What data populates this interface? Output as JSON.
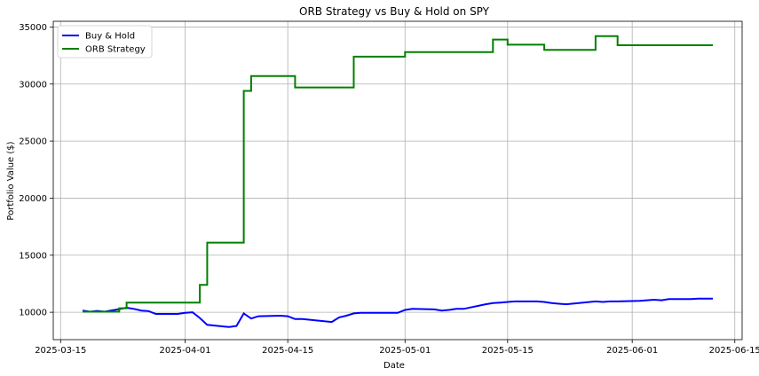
{
  "chart_data": {
    "type": "line",
    "title": "ORB Strategy vs Buy & Hold on SPY",
    "xlabel": "Date",
    "ylabel": "Portfolio Value ($)",
    "x_ticks": [
      "2025-03-15",
      "2025-04-01",
      "2025-04-15",
      "2025-05-01",
      "2025-05-15",
      "2025-06-01",
      "2025-06-15"
    ],
    "y_ticks": [
      10000,
      15000,
      20000,
      25000,
      30000,
      35000
    ],
    "xlim": [
      "2025-03-14",
      "2025-06-16"
    ],
    "ylim": [
      7600,
      35500
    ],
    "grid": true,
    "legend": "top-left",
    "series": [
      {
        "name": "Buy & Hold",
        "color": "#0000ff",
        "points": [
          [
            "2025-03-18",
            10150
          ],
          [
            "2025-03-19",
            10050
          ],
          [
            "2025-03-20",
            10120
          ],
          [
            "2025-03-21",
            10050
          ],
          [
            "2025-03-24",
            10400
          ],
          [
            "2025-03-25",
            10300
          ],
          [
            "2025-03-26",
            10150
          ],
          [
            "2025-03-27",
            10100
          ],
          [
            "2025-03-28",
            9850
          ],
          [
            "2025-03-31",
            9850
          ],
          [
            "2025-04-01",
            9950
          ],
          [
            "2025-04-02",
            10000
          ],
          [
            "2025-04-03",
            9500
          ],
          [
            "2025-04-04",
            8900
          ],
          [
            "2025-04-07",
            8700
          ],
          [
            "2025-04-08",
            8800
          ],
          [
            "2025-04-09",
            9900
          ],
          [
            "2025-04-10",
            9450
          ],
          [
            "2025-04-11",
            9650
          ],
          [
            "2025-04-14",
            9700
          ],
          [
            "2025-04-15",
            9650
          ],
          [
            "2025-04-16",
            9400
          ],
          [
            "2025-04-17",
            9400
          ],
          [
            "2025-04-21",
            9150
          ],
          [
            "2025-04-22",
            9550
          ],
          [
            "2025-04-23",
            9700
          ],
          [
            "2025-04-24",
            9900
          ],
          [
            "2025-04-25",
            9950
          ],
          [
            "2025-04-28",
            9950
          ],
          [
            "2025-04-29",
            9950
          ],
          [
            "2025-04-30",
            9950
          ],
          [
            "2025-05-01",
            10200
          ],
          [
            "2025-05-02",
            10300
          ],
          [
            "2025-05-05",
            10250
          ],
          [
            "2025-05-06",
            10150
          ],
          [
            "2025-05-07",
            10200
          ],
          [
            "2025-05-08",
            10300
          ],
          [
            "2025-05-09",
            10300
          ],
          [
            "2025-05-12",
            10700
          ],
          [
            "2025-05-13",
            10800
          ],
          [
            "2025-05-14",
            10850
          ],
          [
            "2025-05-15",
            10900
          ],
          [
            "2025-05-16",
            10950
          ],
          [
            "2025-05-19",
            10950
          ],
          [
            "2025-05-20",
            10900
          ],
          [
            "2025-05-21",
            10800
          ],
          [
            "2025-05-22",
            10750
          ],
          [
            "2025-05-23",
            10700
          ],
          [
            "2025-05-27",
            10950
          ],
          [
            "2025-05-28",
            10900
          ],
          [
            "2025-05-29",
            10950
          ],
          [
            "2025-05-30",
            10950
          ],
          [
            "2025-06-02",
            11000
          ],
          [
            "2025-06-03",
            11050
          ],
          [
            "2025-06-04",
            11100
          ],
          [
            "2025-06-05",
            11050
          ],
          [
            "2025-06-06",
            11150
          ],
          [
            "2025-06-09",
            11150
          ],
          [
            "2025-06-10",
            11200
          ],
          [
            "2025-06-11",
            11200
          ],
          [
            "2025-06-12",
            11200
          ]
        ]
      },
      {
        "name": "ORB Strategy",
        "color": "#008000",
        "step": true,
        "points": [
          [
            "2025-03-18",
            10050
          ],
          [
            "2025-03-23",
            10350
          ],
          [
            "2025-03-24",
            10850
          ],
          [
            "2025-04-03",
            12400
          ],
          [
            "2025-04-04",
            16100
          ],
          [
            "2025-04-09",
            29400
          ],
          [
            "2025-04-10",
            30700
          ],
          [
            "2025-04-16",
            29700
          ],
          [
            "2025-04-24",
            32400
          ],
          [
            "2025-05-01",
            32800
          ],
          [
            "2025-05-13",
            33900
          ],
          [
            "2025-05-15",
            33450
          ],
          [
            "2025-05-20",
            33000
          ],
          [
            "2025-05-27",
            34200
          ],
          [
            "2025-05-30",
            33400
          ],
          [
            "2025-06-12",
            33400
          ]
        ]
      }
    ]
  }
}
